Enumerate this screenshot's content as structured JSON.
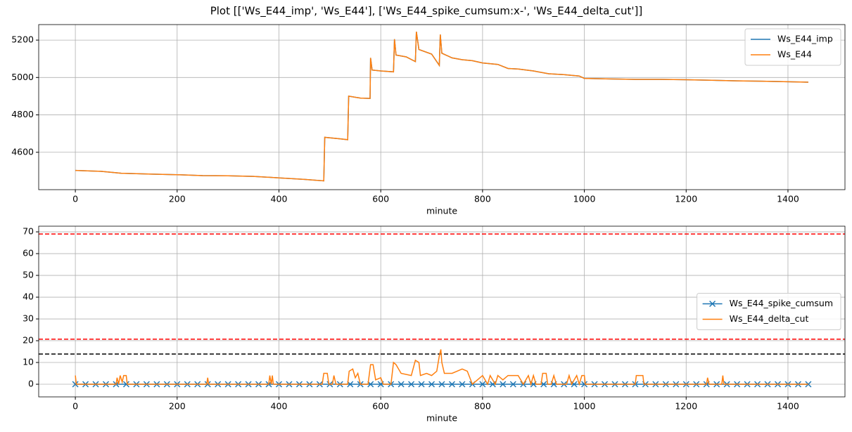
{
  "title": "Plot [['Ws_E44_imp', 'Ws_E44'], ['Ws_E44_spike_cumsum:x-', 'Ws_E44_delta_cut']]",
  "chart_data": [
    {
      "type": "line",
      "xlabel": "minute",
      "xlim": [
        -72,
        1512
      ],
      "ylim": [
        4400,
        5283
      ],
      "xticks": [
        0,
        200,
        400,
        600,
        800,
        1000,
        1200,
        1400
      ],
      "yticks": [
        4600,
        4800,
        5000,
        5200
      ],
      "grid": true,
      "legend": "upper right",
      "series": [
        {
          "name": "Ws_E44_imp",
          "color": "#1f77b4",
          "x": [
            0,
            50,
            90,
            150,
            200,
            250,
            300,
            350,
            400,
            450,
            488,
            490,
            520,
            535,
            537,
            560,
            579,
            580,
            583,
            600,
            625,
            627,
            630,
            650,
            668,
            670,
            675,
            700,
            715,
            717,
            720,
            740,
            760,
            780,
            800,
            830,
            850,
            870,
            900,
            930,
            960,
            990,
            1000,
            1050,
            1100,
            1150,
            1200,
            1250,
            1300,
            1350,
            1400,
            1440
          ],
          "values": [
            4503,
            4498,
            4488,
            4483,
            4480,
            4475,
            4474,
            4471,
            4463,
            4455,
            4447,
            4680,
            4672,
            4667,
            4900,
            4890,
            4888,
            5105,
            5040,
            5035,
            5030,
            5205,
            5120,
            5110,
            5085,
            5245,
            5150,
            5125,
            5065,
            5230,
            5130,
            5105,
            5095,
            5090,
            5078,
            5070,
            5048,
            5045,
            5035,
            5020,
            5015,
            5008,
            4995,
            4992,
            4990,
            4990,
            4988,
            4985,
            4982,
            4980,
            4977,
            4975
          ]
        },
        {
          "name": "Ws_E44",
          "color": "#ff7f0e",
          "x": [
            0,
            50,
            90,
            150,
            200,
            250,
            300,
            350,
            400,
            450,
            488,
            490,
            520,
            535,
            537,
            560,
            579,
            580,
            583,
            600,
            625,
            627,
            630,
            650,
            668,
            670,
            675,
            700,
            715,
            717,
            720,
            740,
            760,
            780,
            800,
            830,
            850,
            870,
            900,
            930,
            960,
            990,
            1000,
            1050,
            1100,
            1150,
            1200,
            1250,
            1300,
            1350,
            1400,
            1440
          ],
          "values": [
            4503,
            4498,
            4488,
            4483,
            4480,
            4475,
            4474,
            4471,
            4463,
            4455,
            4447,
            4680,
            4672,
            4667,
            4900,
            4890,
            4888,
            5105,
            5040,
            5035,
            5030,
            5205,
            5120,
            5110,
            5085,
            5245,
            5150,
            5125,
            5065,
            5230,
            5130,
            5105,
            5095,
            5090,
            5078,
            5070,
            5048,
            5045,
            5035,
            5020,
            5015,
            5008,
            4995,
            4992,
            4990,
            4990,
            4988,
            4985,
            4982,
            4980,
            4977,
            4975
          ]
        }
      ]
    },
    {
      "type": "line",
      "xlabel": "minute",
      "xlim": [
        -72,
        1512
      ],
      "ylim": [
        -5.8,
        72.6
      ],
      "xticks": [
        0,
        200,
        400,
        600,
        800,
        1000,
        1200,
        1400
      ],
      "yticks": [
        0,
        10,
        20,
        30,
        40,
        50,
        60,
        70
      ],
      "grid": true,
      "legend": "center right",
      "hlines": [
        {
          "value": 69,
          "color": "#ff0000"
        },
        {
          "value": 20.7,
          "color": "#ff0000"
        },
        {
          "value": 13.9,
          "color": "#000000"
        }
      ],
      "series": [
        {
          "name": "Ws_E44_spike_cumsum",
          "color": "#1f77b4",
          "marker": "x",
          "x": [
            0,
            20,
            40,
            60,
            80,
            100,
            120,
            140,
            160,
            180,
            200,
            220,
            240,
            260,
            280,
            300,
            320,
            340,
            360,
            380,
            400,
            420,
            440,
            460,
            480,
            500,
            520,
            540,
            560,
            580,
            600,
            620,
            640,
            660,
            680,
            700,
            720,
            740,
            760,
            780,
            800,
            820,
            840,
            860,
            880,
            900,
            920,
            940,
            960,
            980,
            1000,
            1020,
            1040,
            1060,
            1080,
            1100,
            1120,
            1140,
            1160,
            1180,
            1200,
            1220,
            1240,
            1260,
            1280,
            1300,
            1320,
            1340,
            1360,
            1380,
            1400,
            1420,
            1440
          ],
          "values": [
            0,
            0,
            0,
            0,
            0,
            0,
            0,
            0,
            0,
            0,
            0,
            0,
            0,
            0,
            0,
            0,
            0,
            0,
            0,
            0,
            0,
            0,
            0,
            0,
            0,
            0,
            0,
            0,
            0,
            0,
            0,
            0,
            0,
            0,
            0,
            0,
            0,
            0,
            0,
            0,
            0,
            0,
            0,
            0,
            0,
            0,
            0,
            0,
            0,
            0,
            0,
            0,
            0,
            0,
            0,
            0,
            0,
            0,
            0,
            0,
            0,
            0,
            0,
            0,
            0,
            0,
            0,
            0,
            0,
            0,
            0,
            0,
            0
          ]
        },
        {
          "name": "Ws_E44_delta_cut",
          "color": "#ff7f0e",
          "x": [
            0,
            2,
            80,
            82,
            85,
            88,
            92,
            95,
            100,
            102,
            258,
            260,
            262,
            380,
            382,
            385,
            387,
            389,
            485,
            488,
            495,
            498,
            505,
            508,
            512,
            535,
            538,
            545,
            550,
            555,
            560,
            575,
            580,
            585,
            590,
            600,
            605,
            620,
            625,
            630,
            640,
            660,
            668,
            675,
            678,
            690,
            700,
            710,
            715,
            718,
            720,
            725,
            740,
            750,
            760,
            770,
            780,
            800,
            810,
            815,
            825,
            830,
            840,
            850,
            870,
            880,
            890,
            895,
            900,
            905,
            915,
            918,
            925,
            928,
            935,
            940,
            945,
            965,
            970,
            975,
            985,
            990,
            995,
            1000,
            1002,
            1100,
            1102,
            1115,
            1117,
            1240,
            1242,
            1245,
            1270,
            1272,
            1274,
            1440
          ],
          "values": [
            4,
            0,
            0,
            3,
            0,
            4,
            1,
            4,
            4,
            0,
            0,
            3,
            0,
            0,
            4,
            0,
            4,
            0,
            0,
            5,
            5,
            0,
            0,
            4,
            0,
            0,
            6,
            7,
            3,
            5,
            0,
            0,
            9,
            9,
            2,
            3,
            0,
            0,
            10,
            9,
            5,
            4,
            11,
            10,
            4,
            5,
            4,
            6,
            13,
            16,
            10,
            5,
            5,
            6,
            7,
            6,
            0,
            4,
            0,
            4,
            0,
            4,
            2,
            4,
            4,
            0,
            4,
            0,
            4,
            0,
            0,
            5,
            5,
            0,
            0,
            4,
            0,
            0,
            4,
            0,
            4,
            0,
            4,
            4,
            0,
            0,
            4,
            4,
            0,
            0,
            3,
            0,
            0,
            4,
            0,
            0
          ]
        }
      ]
    }
  ]
}
